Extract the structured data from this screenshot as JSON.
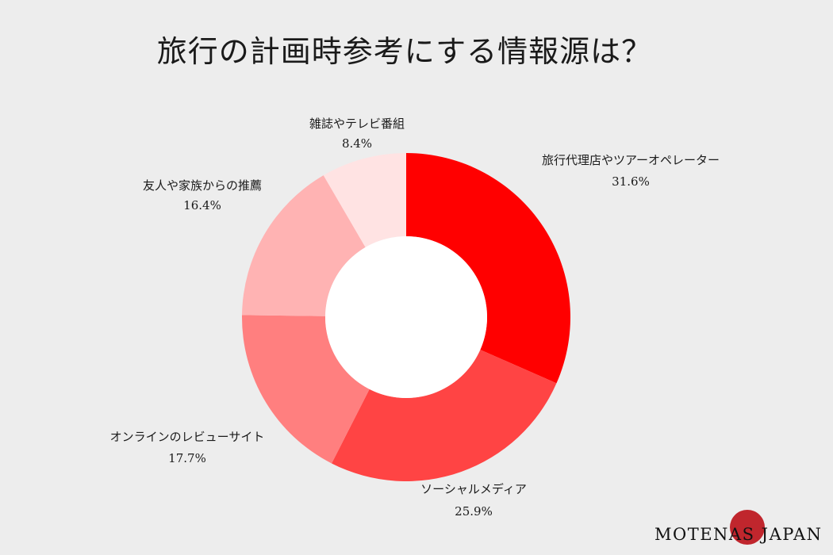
{
  "chart_data": {
    "type": "pie",
    "donut": true,
    "title": "旅行の計画時参考にする情報源は？",
    "slices": [
      {
        "label": "旅行代理店やツアーオペレーター",
        "value": 31.6,
        "value_label": "31.6%",
        "color": "#ff0000"
      },
      {
        "label": "ソーシャルメディア",
        "value": 25.9,
        "value_label": "25.9%",
        "color": "#ff4444"
      },
      {
        "label": "オンラインのレビューサイト",
        "value": 17.7,
        "value_label": "17.7%",
        "color": "#ff7f7f"
      },
      {
        "label": "友人や家族からの推薦",
        "value": 16.4,
        "value_label": "16.4%",
        "color": "#ffb3b3"
      },
      {
        "label": "雑誌やテレビ番組",
        "value": 8.4,
        "value_label": "8.4%",
        "color": "#ffe3e3"
      }
    ],
    "start_angle": "12 o'clock",
    "direction": "clockwise",
    "legend": "none"
  },
  "brand": {
    "name": "MOTENAS JAPAN",
    "circle_color": "#c0262d"
  },
  "background_color": "#ededed"
}
